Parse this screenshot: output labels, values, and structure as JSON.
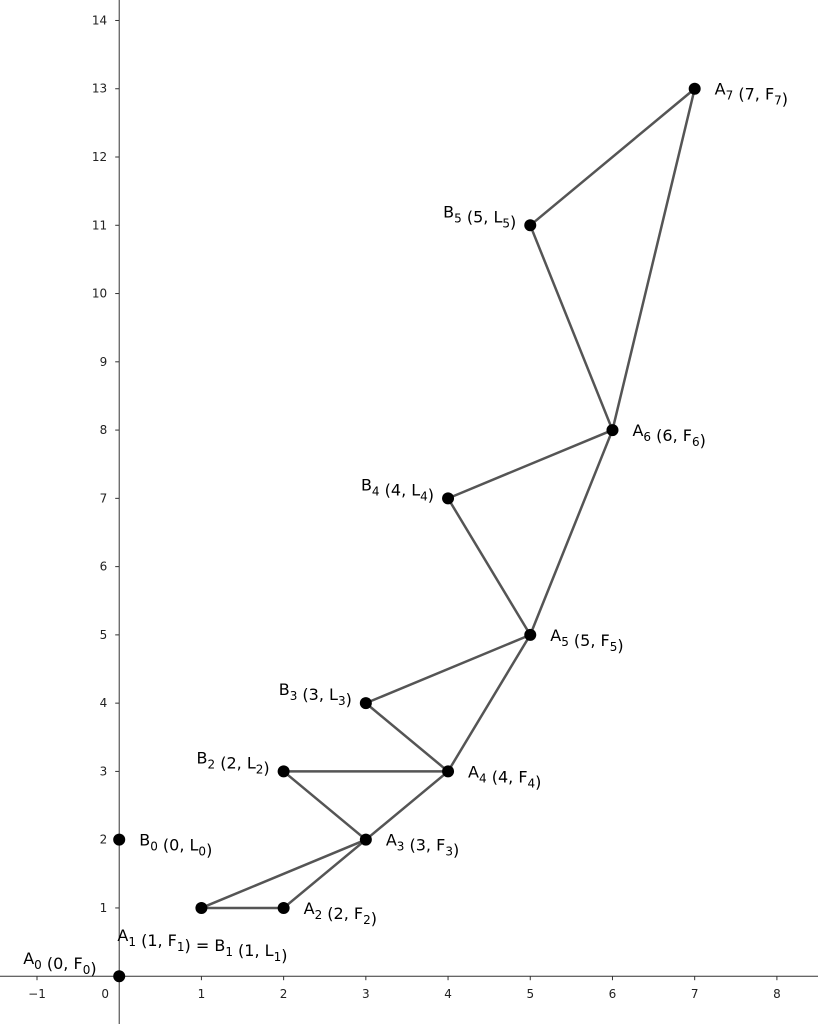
{
  "chart_data": {
    "type": "scatter",
    "xlim": [
      -1.45,
      8.5
    ],
    "ylim": [
      -0.7,
      14.3
    ],
    "grid": false,
    "x_ticks": [
      -1,
      0,
      1,
      2,
      3,
      4,
      5,
      6,
      7,
      8
    ],
    "y_ticks": [
      1,
      2,
      3,
      4,
      5,
      6,
      7,
      8,
      9,
      10,
      11,
      12,
      13,
      14
    ],
    "points": [
      {
        "id": "A0",
        "x": 0,
        "y": 0,
        "label": [
          [
            "A",
            ""
          ],
          [
            "0",
            "s"
          ],
          [
            " (0, F",
            ""
          ],
          [
            "0",
            "s"
          ],
          [
            ")",
            ""
          ]
        ],
        "anchor": "above-left"
      },
      {
        "id": "B0",
        "x": 0,
        "y": 2,
        "label": [
          [
            "B",
            ""
          ],
          [
            "0",
            "s"
          ],
          [
            " (0, L",
            ""
          ],
          [
            "0",
            "s"
          ],
          [
            ")",
            ""
          ]
        ],
        "anchor": "right"
      },
      {
        "id": "A1",
        "x": 1,
        "y": 1,
        "label": [
          [
            "A",
            ""
          ],
          [
            "1",
            "s"
          ],
          [
            " (1, F",
            ""
          ],
          [
            "1",
            "s"
          ],
          [
            ") = B",
            ""
          ],
          [
            "1",
            "s"
          ],
          [
            " (1, L",
            ""
          ],
          [
            "1",
            "s"
          ],
          [
            ")",
            ""
          ]
        ],
        "anchor": "below"
      },
      {
        "id": "A2",
        "x": 2,
        "y": 1,
        "label": [
          [
            "A",
            ""
          ],
          [
            "2",
            "s"
          ],
          [
            " (2, F",
            ""
          ],
          [
            "2",
            "s"
          ],
          [
            ")",
            ""
          ]
        ],
        "anchor": "right"
      },
      {
        "id": "A3",
        "x": 3,
        "y": 2,
        "label": [
          [
            "A",
            ""
          ],
          [
            "3",
            "s"
          ],
          [
            " (3, F",
            ""
          ],
          [
            "3",
            "s"
          ],
          [
            ")",
            ""
          ]
        ],
        "anchor": "right"
      },
      {
        "id": "B2",
        "x": 2,
        "y": 3,
        "label": [
          [
            "B",
            ""
          ],
          [
            "2",
            "s"
          ],
          [
            " (2, L",
            ""
          ],
          [
            "2",
            "s"
          ],
          [
            ")",
            ""
          ]
        ],
        "anchor": "left"
      },
      {
        "id": "A4",
        "x": 4,
        "y": 3,
        "label": [
          [
            "A",
            ""
          ],
          [
            "4",
            "s"
          ],
          [
            " (4, F",
            ""
          ],
          [
            "4",
            "s"
          ],
          [
            ")",
            ""
          ]
        ],
        "anchor": "right"
      },
      {
        "id": "B3",
        "x": 3,
        "y": 4,
        "label": [
          [
            "B",
            ""
          ],
          [
            "3",
            "s"
          ],
          [
            " (3, L",
            ""
          ],
          [
            "3",
            "s"
          ],
          [
            ")",
            ""
          ]
        ],
        "anchor": "left"
      },
      {
        "id": "A5",
        "x": 5,
        "y": 5,
        "label": [
          [
            "A",
            ""
          ],
          [
            "5",
            "s"
          ],
          [
            " (5, F",
            ""
          ],
          [
            "5",
            "s"
          ],
          [
            ")",
            ""
          ]
        ],
        "anchor": "right"
      },
      {
        "id": "B4",
        "x": 4,
        "y": 7,
        "label": [
          [
            "B",
            ""
          ],
          [
            "4",
            "s"
          ],
          [
            " (4, L",
            ""
          ],
          [
            "4",
            "s"
          ],
          [
            ")",
            ""
          ]
        ],
        "anchor": "left"
      },
      {
        "id": "A6",
        "x": 6,
        "y": 8,
        "label": [
          [
            "A",
            ""
          ],
          [
            "6",
            "s"
          ],
          [
            " (6, F",
            ""
          ],
          [
            "6",
            "s"
          ],
          [
            ")",
            ""
          ]
        ],
        "anchor": "right"
      },
      {
        "id": "B5",
        "x": 5,
        "y": 11,
        "label": [
          [
            "B",
            ""
          ],
          [
            "5",
            "s"
          ],
          [
            " (5, L",
            ""
          ],
          [
            "5",
            "s"
          ],
          [
            ")",
            ""
          ]
        ],
        "anchor": "left"
      },
      {
        "id": "A7",
        "x": 7,
        "y": 13,
        "label": [
          [
            "A",
            ""
          ],
          [
            "7",
            "s"
          ],
          [
            " (7, F",
            ""
          ],
          [
            "7",
            "s"
          ],
          [
            ")",
            ""
          ]
        ],
        "anchor": "right"
      }
    ],
    "segments": [
      [
        "A1",
        "A2"
      ],
      [
        "A1",
        "A3"
      ],
      [
        "A2",
        "A3"
      ],
      [
        "A3",
        "B2"
      ],
      [
        "B2",
        "A4"
      ],
      [
        "A3",
        "A4"
      ],
      [
        "A4",
        "B3"
      ],
      [
        "B3",
        "A5"
      ],
      [
        "A4",
        "A5"
      ],
      [
        "A5",
        "B4"
      ],
      [
        "B4",
        "A6"
      ],
      [
        "A5",
        "A6"
      ],
      [
        "A6",
        "B5"
      ],
      [
        "B5",
        "A7"
      ],
      [
        "A6",
        "A7"
      ]
    ]
  }
}
